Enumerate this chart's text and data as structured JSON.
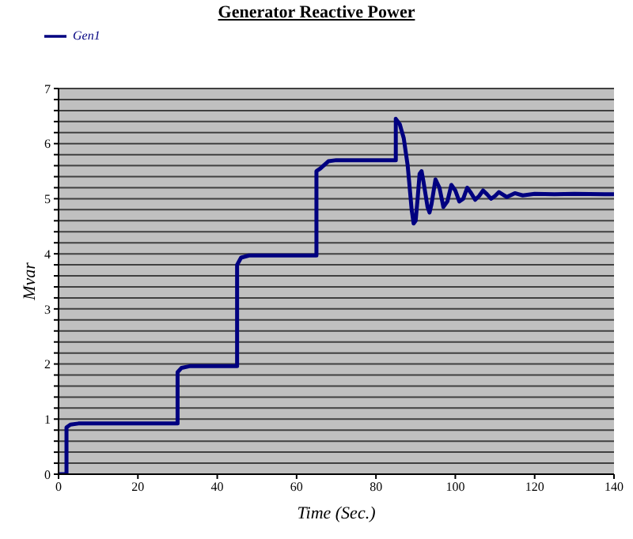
{
  "chart_data": {
    "type": "line",
    "title": "Generator Reactive Power",
    "xlabel": "Time (Sec.)",
    "ylabel": "Mvar",
    "xlim": [
      0,
      140
    ],
    "xticks": [
      0,
      20,
      40,
      60,
      80,
      100,
      120,
      140
    ],
    "ylim": [
      0,
      7
    ],
    "yticks": [
      0,
      {
        "value": 0.2,
        "label": null
      },
      {
        "value": 0.4,
        "label": null
      },
      {
        "value": 0.6,
        "label": null
      },
      {
        "value": 0.8,
        "label": null
      },
      1,
      {
        "value": 1.2,
        "label": null
      },
      {
        "value": 1.4,
        "label": null
      },
      {
        "value": 1.6,
        "label": null
      },
      {
        "value": 1.8,
        "label": null
      },
      2,
      {
        "value": 2.2,
        "label": null
      },
      {
        "value": 2.4,
        "label": null
      },
      {
        "value": 2.6,
        "label": null
      },
      {
        "value": 2.8,
        "label": null
      },
      3,
      {
        "value": 3.2,
        "label": null
      },
      {
        "value": 3.4,
        "label": null
      },
      {
        "value": 3.6,
        "label": null
      },
      {
        "value": 3.8,
        "label": null
      },
      4,
      {
        "value": 4.2,
        "label": null
      },
      {
        "value": 4.4,
        "label": null
      },
      {
        "value": 4.6,
        "label": null
      },
      {
        "value": 4.8,
        "label": null
      },
      5,
      {
        "value": 5.2,
        "label": null
      },
      {
        "value": 5.4,
        "label": null
      },
      {
        "value": 5.6,
        "label": null
      },
      {
        "value": 5.8,
        "label": null
      },
      6,
      {
        "value": 6.2,
        "label": null
      },
      {
        "value": 6.4,
        "label": null
      },
      {
        "value": 6.6,
        "label": null
      },
      {
        "value": 6.8,
        "label": null
      },
      7
    ],
    "grid": "y",
    "legend": "top left",
    "marker": "none",
    "line_style": "solid",
    "x": [
      0,
      2,
      2,
      3,
      5,
      30,
      30,
      31,
      33,
      45,
      45,
      46,
      48,
      65,
      65,
      66,
      68,
      70,
      85,
      85,
      86,
      87,
      88,
      89,
      89.5,
      90,
      90.5,
      91,
      91.5,
      92,
      93,
      93.5,
      94,
      95,
      96,
      97,
      98,
      99,
      100,
      101,
      102,
      103,
      104,
      105,
      106,
      107,
      108,
      109,
      110,
      111,
      113,
      115,
      117,
      120,
      125,
      130,
      140
    ],
    "series": [
      {
        "name": "Gen1",
        "color": "#000080",
        "values": [
          0,
          0,
          0.85,
          0.9,
          0.92,
          0.92,
          1.85,
          1.93,
          1.96,
          1.96,
          3.8,
          3.93,
          3.97,
          3.97,
          5.5,
          5.55,
          5.68,
          5.7,
          5.7,
          6.45,
          6.35,
          6.1,
          5.6,
          4.8,
          4.55,
          4.6,
          5,
          5.45,
          5.5,
          5.3,
          4.85,
          4.75,
          4.9,
          5.35,
          5.2,
          4.85,
          4.95,
          5.25,
          5.15,
          4.95,
          5.0,
          5.2,
          5.1,
          4.98,
          5.05,
          5.15,
          5.08,
          5.0,
          5.05,
          5.12,
          5.03,
          5.1,
          5.06,
          5.09,
          5.08,
          5.09,
          5.08
        ]
      }
    ]
  }
}
